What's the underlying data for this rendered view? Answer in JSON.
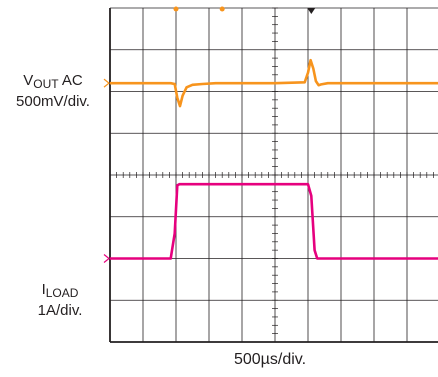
{
  "chart_data": {
    "type": "line",
    "timebase_label": "500µs/div.",
    "x_unit": "ms",
    "x_range": [
      0,
      5
    ],
    "channels": [
      {
        "name_main": "V",
        "name_sub": "OUT",
        "name_suffix": " AC",
        "scale_label": "500mV/div.",
        "color": "#f7941d",
        "baseline_div": 1.8,
        "points": [
          [
            0,
            0
          ],
          [
            0.92,
            0
          ],
          [
            0.98,
            -0.02
          ],
          [
            1.02,
            -0.35
          ],
          [
            1.06,
            -0.55
          ],
          [
            1.1,
            -0.3
          ],
          [
            1.16,
            -0.1
          ],
          [
            1.25,
            -0.04
          ],
          [
            1.4,
            -0.02
          ],
          [
            1.6,
            0
          ],
          [
            2.0,
            0
          ],
          [
            2.5,
            0
          ],
          [
            2.95,
            0.02
          ],
          [
            3.0,
            0.25
          ],
          [
            3.04,
            0.55
          ],
          [
            3.08,
            0.35
          ],
          [
            3.12,
            0.05
          ],
          [
            3.16,
            -0.05
          ],
          [
            3.2,
            -0.03
          ],
          [
            3.3,
            0
          ],
          [
            5,
            0
          ]
        ]
      },
      {
        "name_main": "I",
        "name_sub": "LOAD",
        "name_suffix": "",
        "scale_label": "1A/div.",
        "color": "#e6007e",
        "baseline_div": 6.0,
        "points": [
          [
            0,
            0
          ],
          [
            0.92,
            0
          ],
          [
            0.98,
            0.6
          ],
          [
            1.02,
            1.75
          ],
          [
            1.05,
            1.78
          ],
          [
            3.0,
            1.78
          ],
          [
            3.05,
            1.5
          ],
          [
            3.1,
            0.2
          ],
          [
            3.14,
            0
          ],
          [
            5,
            0
          ]
        ]
      }
    ],
    "grid": true,
    "h_divisions": 10,
    "v_divisions": 8
  }
}
